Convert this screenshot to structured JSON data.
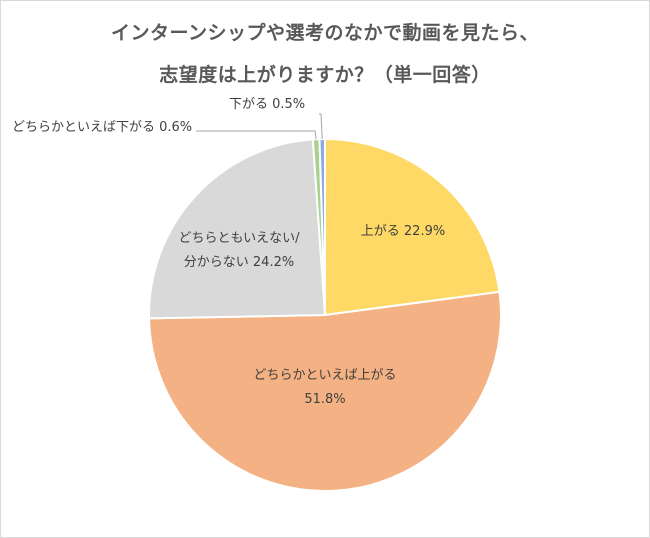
{
  "chart_data": {
    "type": "pie",
    "title_lines": [
      "インターンシップや選考のなかで動画を見たら、",
      "志望度は上がりますか？（単一回答）"
    ],
    "slices": [
      {
        "label": "上がる",
        "value": 22.9,
        "display": "上がる 22.9%",
        "color": "#FFD966"
      },
      {
        "label": "どちらかといえば上がる",
        "value": 51.8,
        "display_lines": [
          "どちらかといえば上がる",
          "51.8%"
        ],
        "color": "#F4B183"
      },
      {
        "label": "どちらともいえない/分からない",
        "value": 24.2,
        "display_lines": [
          "どちらともいえない/",
          "分からない 24.2%"
        ],
        "color": "#D9D9D9"
      },
      {
        "label": "どちらかといえば下がる",
        "value": 0.6,
        "display": "どちらかといえば下がる 0.6%",
        "color": "#A9D18E"
      },
      {
        "label": "下がる",
        "value": 0.5,
        "display": "下がる 0.5%",
        "color": "#8FAADC"
      }
    ]
  }
}
